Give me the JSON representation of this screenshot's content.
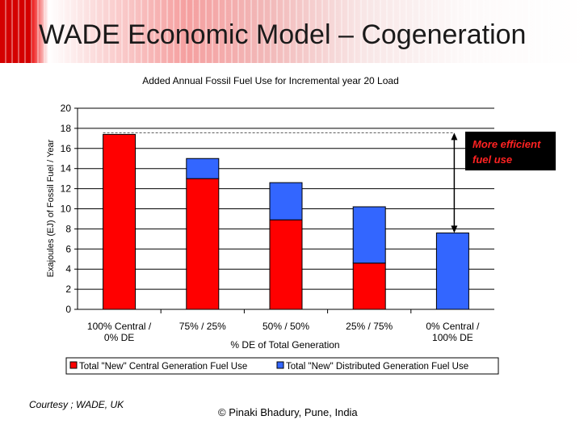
{
  "slide": {
    "title": "WADE Economic Model – Cogeneration",
    "callout_line1": "More efficient",
    "callout_line2": "fuel use",
    "courtesy": "Courtesy ; WADE, UK",
    "copyright": "© Pinaki Bhadury, Pune, India"
  },
  "colors": {
    "central": "#ff0000",
    "distributed": "#3366ff",
    "callout_text": "#ff2222"
  },
  "chart_data": {
    "type": "bar",
    "stacked": true,
    "title": "Added Annual Fossil Fuel Use for Incremental year 20 Load",
    "xlabel": "% DE of Total Generation",
    "ylabel": "Exajoules (EJ) of Fossil Fuel / Year",
    "ylim": [
      0,
      20
    ],
    "yticks": [
      "0",
      "2",
      "4",
      "6",
      "8",
      "10",
      "12",
      "14",
      "16",
      "18",
      "20"
    ],
    "grid": true,
    "legend_position": "bottom",
    "categories": [
      [
        "100% Central /",
        "0% DE"
      ],
      [
        "75%  / 25%"
      ],
      [
        "50% / 50%"
      ],
      [
        "25% / 75%"
      ],
      [
        "0% Central /",
        "100% DE"
      ]
    ],
    "series": [
      {
        "name": "Total \"New\" Central Generation Fuel Use",
        "values": [
          17.4,
          13.0,
          8.9,
          4.6,
          0
        ]
      },
      {
        "name": "Total \"New\" Distributed Generation Fuel Use",
        "values": [
          0,
          2.0,
          3.7,
          5.6,
          7.6
        ]
      }
    ]
  }
}
